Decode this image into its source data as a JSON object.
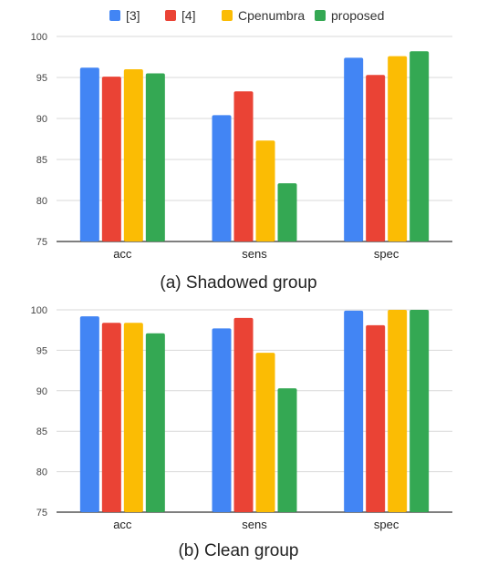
{
  "legend": [
    "[3]",
    "[4]",
    "Cpenumbra",
    "proposed"
  ],
  "colors": [
    "#4285F4",
    "#EA4335",
    "#FBBC04",
    "#34A853"
  ],
  "captions": [
    "(a) Shadowed group",
    "(b) Clean group"
  ],
  "chart_data": [
    {
      "type": "bar",
      "categories": [
        "acc",
        "sens",
        "spec"
      ],
      "series": [
        {
          "name": "[3]",
          "values": [
            96.2,
            90.4,
            97.4
          ]
        },
        {
          "name": "[4]",
          "values": [
            95.1,
            93.3,
            95.3
          ]
        },
        {
          "name": "Cpenumbra",
          "values": [
            96.0,
            87.3,
            97.6
          ]
        },
        {
          "name": "proposed",
          "values": [
            95.5,
            82.1,
            98.2
          ]
        }
      ],
      "ylim": [
        75,
        100
      ],
      "yticks": [
        75,
        80,
        85,
        90,
        95,
        100
      ],
      "grid": true,
      "legend_position": "top"
    },
    {
      "type": "bar",
      "categories": [
        "acc",
        "sens",
        "spec"
      ],
      "series": [
        {
          "name": "[3]",
          "values": [
            99.2,
            97.7,
            99.9
          ]
        },
        {
          "name": "[4]",
          "values": [
            98.4,
            99.0,
            98.1
          ]
        },
        {
          "name": "Cpenumbra",
          "values": [
            98.4,
            94.7,
            100.0
          ]
        },
        {
          "name": "proposed",
          "values": [
            97.1,
            90.3,
            100.0
          ]
        }
      ],
      "ylim": [
        75,
        100
      ],
      "yticks": [
        75,
        80,
        85,
        90,
        95,
        100
      ],
      "grid": true,
      "legend_position": "top"
    }
  ]
}
